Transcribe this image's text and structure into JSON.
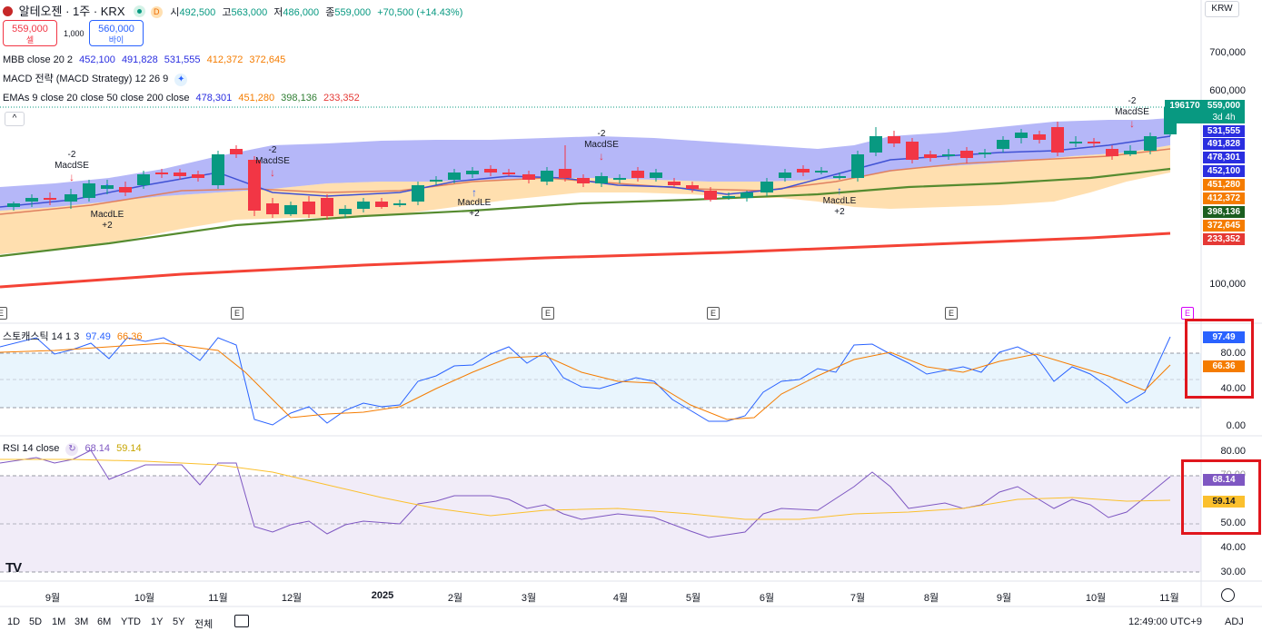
{
  "header": {
    "symbol": "알테오젠 · 1주 · KRX",
    "period_badge": "D",
    "ohlc": [
      {
        "label": "시",
        "value": "492,500"
      },
      {
        "label": "고",
        "value": "563,000"
      },
      {
        "label": "저",
        "value": "486,000"
      },
      {
        "label": "종",
        "value": "559,000"
      }
    ],
    "change": "+70,500 (+14.43%)",
    "currency": "KRW"
  },
  "trade": {
    "sell_price": "559,000",
    "sell_label": "셀",
    "spread": "1,000",
    "buy_price": "560,000",
    "buy_label": "바이"
  },
  "indicators": [
    {
      "name": "MBB close 20 2",
      "values": [
        {
          "v": "452,100",
          "c": "#2a2ee0"
        },
        {
          "v": "491,828",
          "c": "#2a2ee0"
        },
        {
          "v": "531,555",
          "c": "#2a2ee0"
        },
        {
          "v": "412,372",
          "c": "#f57c00"
        },
        {
          "v": "372,645",
          "c": "#f57c00"
        }
      ]
    },
    {
      "name": "MACD 전략 (MACD Strategy) 12 26 9",
      "values": []
    },
    {
      "name": "EMAs 9 close 20 close 50 close 200 close",
      "values": [
        {
          "v": "478,301",
          "c": "#2a2ee0"
        },
        {
          "v": "451,280",
          "c": "#f57c00"
        },
        {
          "v": "398,136",
          "c": "#2e7d32"
        },
        {
          "v": "233,352",
          "c": "#e53935"
        }
      ]
    }
  ],
  "price_scale": [
    "700,000",
    "600,000",
    "100,000"
  ],
  "price_tags": [
    {
      "v": "196170",
      "c": "#089981",
      "sub": "3d 4h"
    },
    {
      "v": "559,000",
      "c": "#089981"
    },
    {
      "v": "531,555",
      "c": "#2a2ee0"
    },
    {
      "v": "491,828",
      "c": "#2a2ee0"
    },
    {
      "v": "478,301",
      "c": "#2a2ee0"
    },
    {
      "v": "452,100",
      "c": "#2a2ee0"
    },
    {
      "v": "451,280",
      "c": "#f57c00"
    },
    {
      "v": "412,372",
      "c": "#f57c00"
    },
    {
      "v": "398,136",
      "c": "#2e7d32"
    },
    {
      "v": "372,645",
      "c": "#f57c00"
    },
    {
      "v": "233,352",
      "c": "#e53935"
    }
  ],
  "signals": [
    {
      "type": "short",
      "label": "MacdSE",
      "qty": "-2"
    },
    {
      "type": "long",
      "label": "MacdLE",
      "qty": "+2"
    },
    {
      "type": "short",
      "label": "MacdSE",
      "qty": "-2"
    },
    {
      "type": "long",
      "label": "MacdLE",
      "qty": "+2"
    },
    {
      "type": "short",
      "label": "MacdSE",
      "qty": "-2"
    },
    {
      "type": "long",
      "label": "MacdLE",
      "qty": "+2"
    },
    {
      "type": "short",
      "label": "MacdSE",
      "qty": "-2"
    }
  ],
  "earnings_marker": "E",
  "stochastic": {
    "name": "스토캐스틱 14 1 3",
    "k": "97.49",
    "d": "66.36",
    "scale": [
      "80.00",
      "40.00",
      "0.00"
    ],
    "k_color": "#2962ff",
    "d_color": "#f57c00"
  },
  "rsi": {
    "name": "RSI 14 close",
    "value": "68.14",
    "ma": "59.14",
    "scale": [
      "80.00",
      "70.00",
      "50.00",
      "40.00",
      "30.00"
    ],
    "color": "#7e57c2",
    "ma_color": "#fbc02d"
  },
  "x_axis": [
    "9월",
    "10월",
    "11월",
    "12월",
    "2025",
    "2월",
    "3월",
    "4월",
    "5월",
    "6월",
    "7월",
    "8월",
    "9월",
    "10월",
    "11월"
  ],
  "ranges": [
    "1D",
    "5D",
    "1M",
    "3M",
    "6M",
    "YTD",
    "1Y",
    "5Y",
    "전체"
  ],
  "footer": {
    "time": "12:49:00 UTC+9",
    "adj": "ADJ"
  },
  "logo": "TV",
  "colors": {
    "up": "#089981",
    "down": "#f23645",
    "highlight": "#e0161d"
  }
}
